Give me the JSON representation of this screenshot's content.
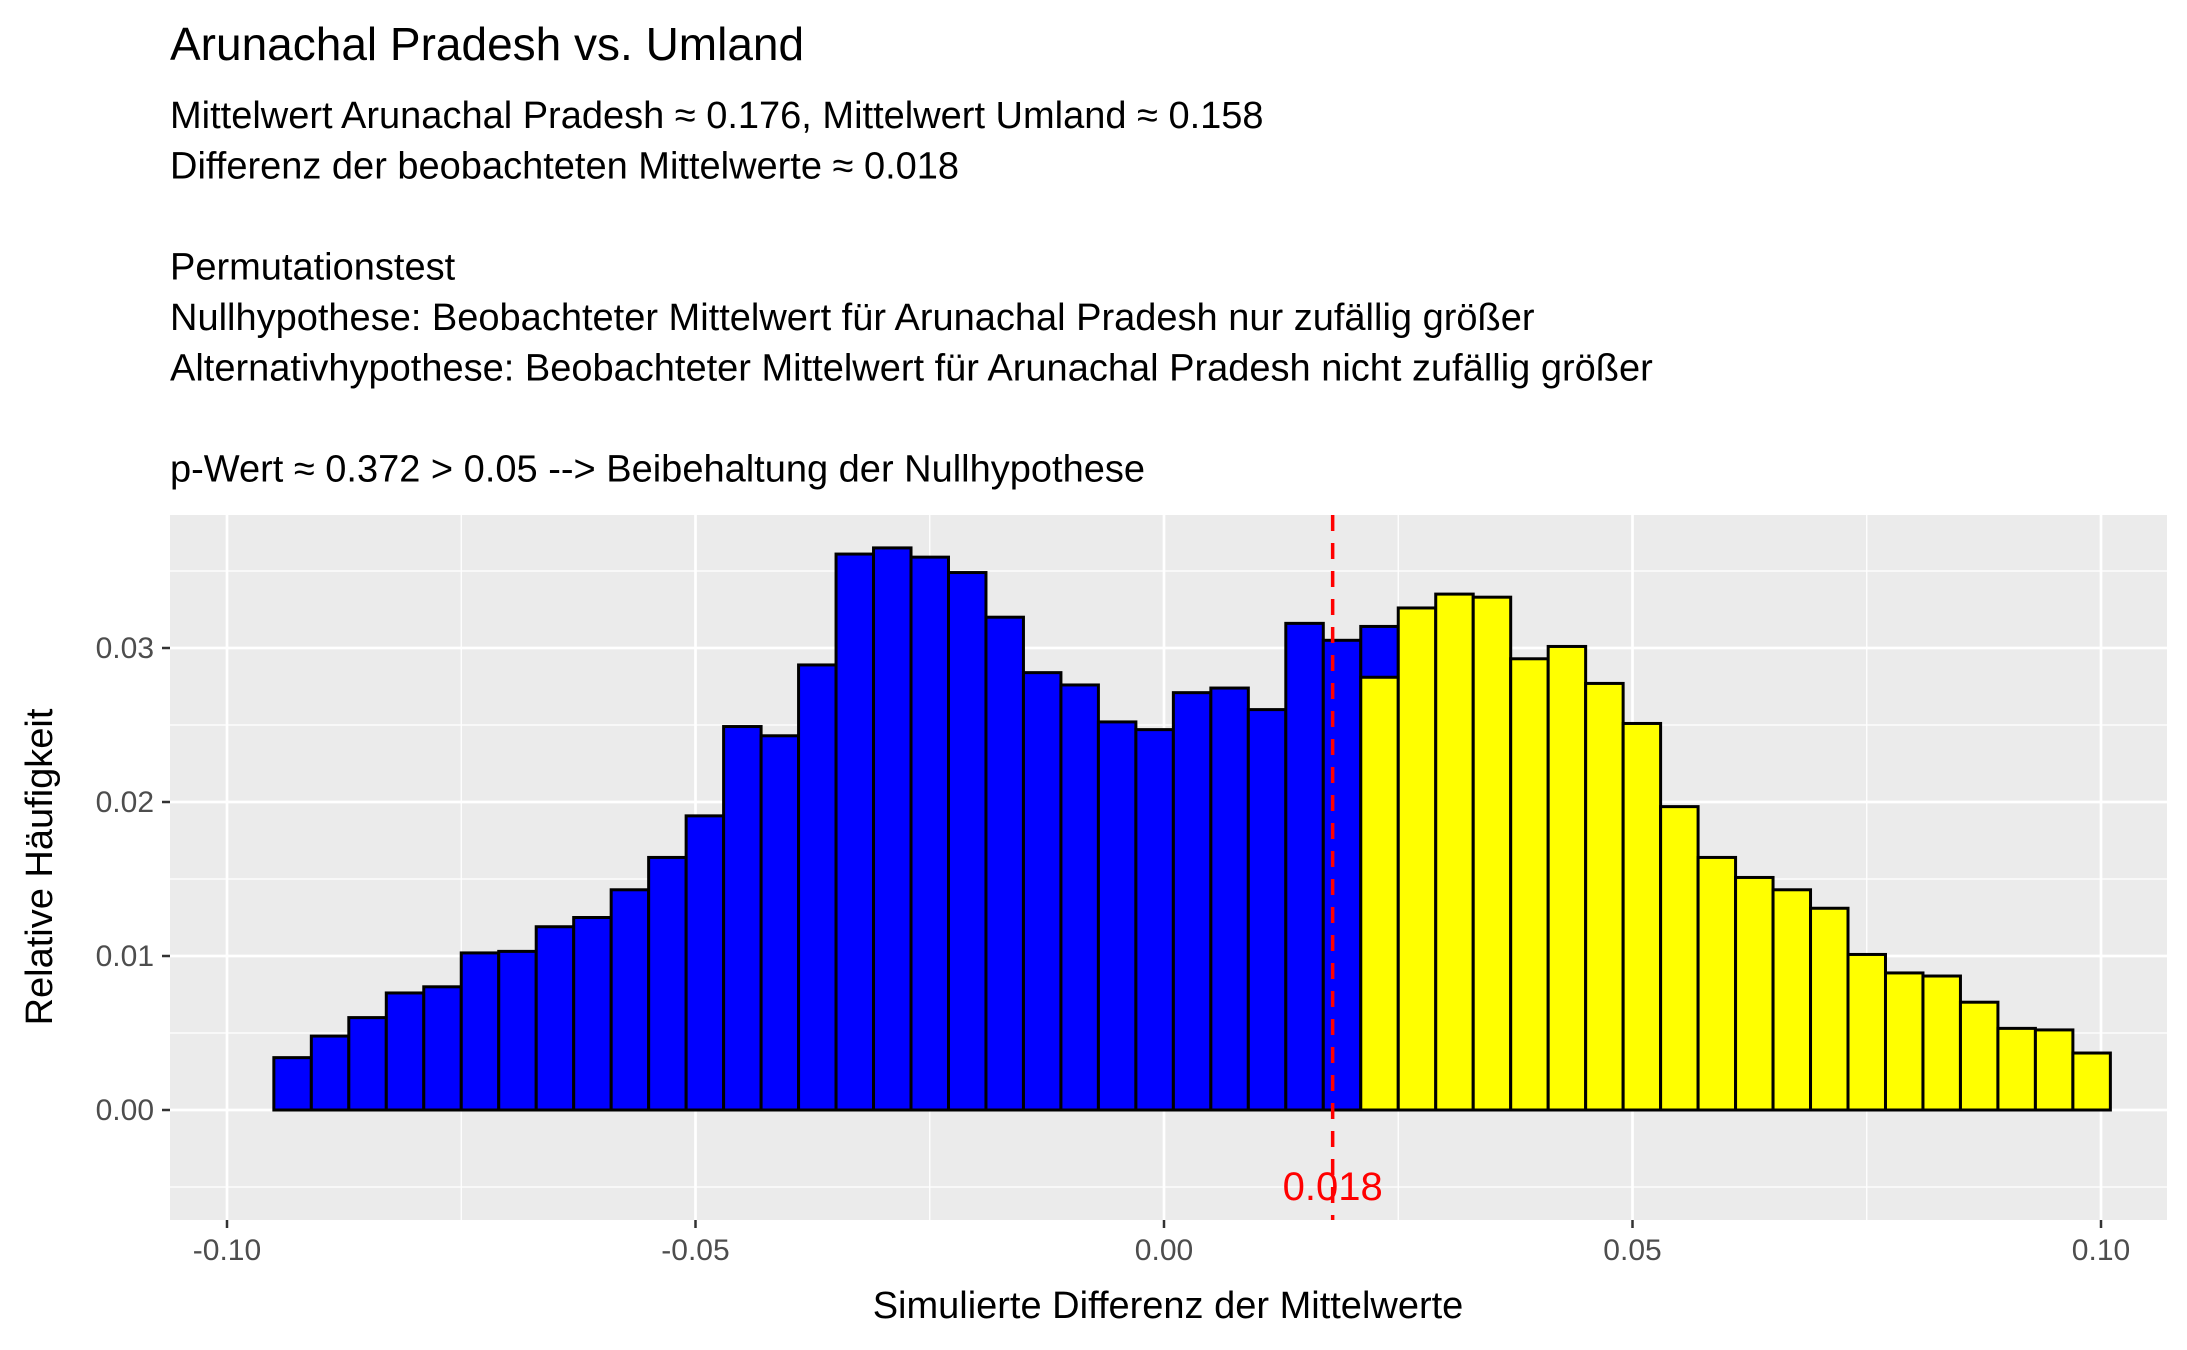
{
  "chart_data": {
    "type": "bar",
    "title": "Arunachal Pradesh vs. Umland",
    "subtitle_lines": [
      "Mittelwert Arunachal Pradesh ≈ 0.176, Mittelwert Umland ≈ 0.158",
      "Differenz der beobachteten Mittelwerte ≈ 0.018",
      "",
      "Permutationstest",
      "Nullhypothese: Beobachteter Mittelwert für Arunachal Pradesh nur zufällig größer",
      "Alternativhypothese: Beobachteter Mittelwert für Arunachal Pradesh nicht zufällig größer",
      "",
      "p-Wert ≈ 0.372 > 0.05 --> Beibehaltung der Nullhypothese"
    ],
    "xlabel": "Simulierte Differenz der Mittelwerte",
    "ylabel": "Relative Häufigkeit",
    "xlim": [
      -0.1,
      0.1
    ],
    "ylim": [
      -0.007,
      0.038
    ],
    "xticks": [
      -0.1,
      -0.05,
      0.0,
      0.05,
      0.1
    ],
    "xtick_labels": [
      "-0.10",
      "-0.05",
      "0.00",
      "0.05",
      "0.10"
    ],
    "yticks": [
      0.0,
      0.01,
      0.02,
      0.03
    ],
    "ytick_labels": [
      "0.00",
      "0.01",
      "0.02",
      "0.03"
    ],
    "bins_start": -0.095,
    "bin_width": 0.004,
    "blue_values": [
      0.0034,
      0.0048,
      0.006,
      0.0076,
      0.008,
      0.0102,
      0.0103,
      0.0119,
      0.0125,
      0.0143,
      0.0164,
      0.0191,
      0.0249,
      0.0243,
      0.0289,
      0.0361,
      0.0365,
      0.0359,
      0.0349,
      0.032,
      0.0284,
      0.0276,
      0.0252,
      0.0247,
      0.0271,
      0.0274,
      0.026,
      0.0316,
      0.0305,
      0.0314
    ],
    "yellow_values": [
      0.0281,
      0.0326,
      0.0335,
      0.0333,
      0.0293,
      0.0301,
      0.0277,
      0.0251,
      0.0197,
      0.0164,
      0.0151,
      0.0143,
      0.0131,
      0.0101,
      0.0089,
      0.0087,
      0.007,
      0.0053,
      0.0052,
      0.0037
    ],
    "split_x": 0.018,
    "observed_diff": 0.018,
    "observed_label": "0.018",
    "colors": {
      "below": "#0000ff",
      "above": "#ffff00",
      "outline": "#000000",
      "vline": "#ff0000",
      "panel": "#ebebeb",
      "grid": "#ffffff"
    },
    "grid": true,
    "legend": "none"
  }
}
